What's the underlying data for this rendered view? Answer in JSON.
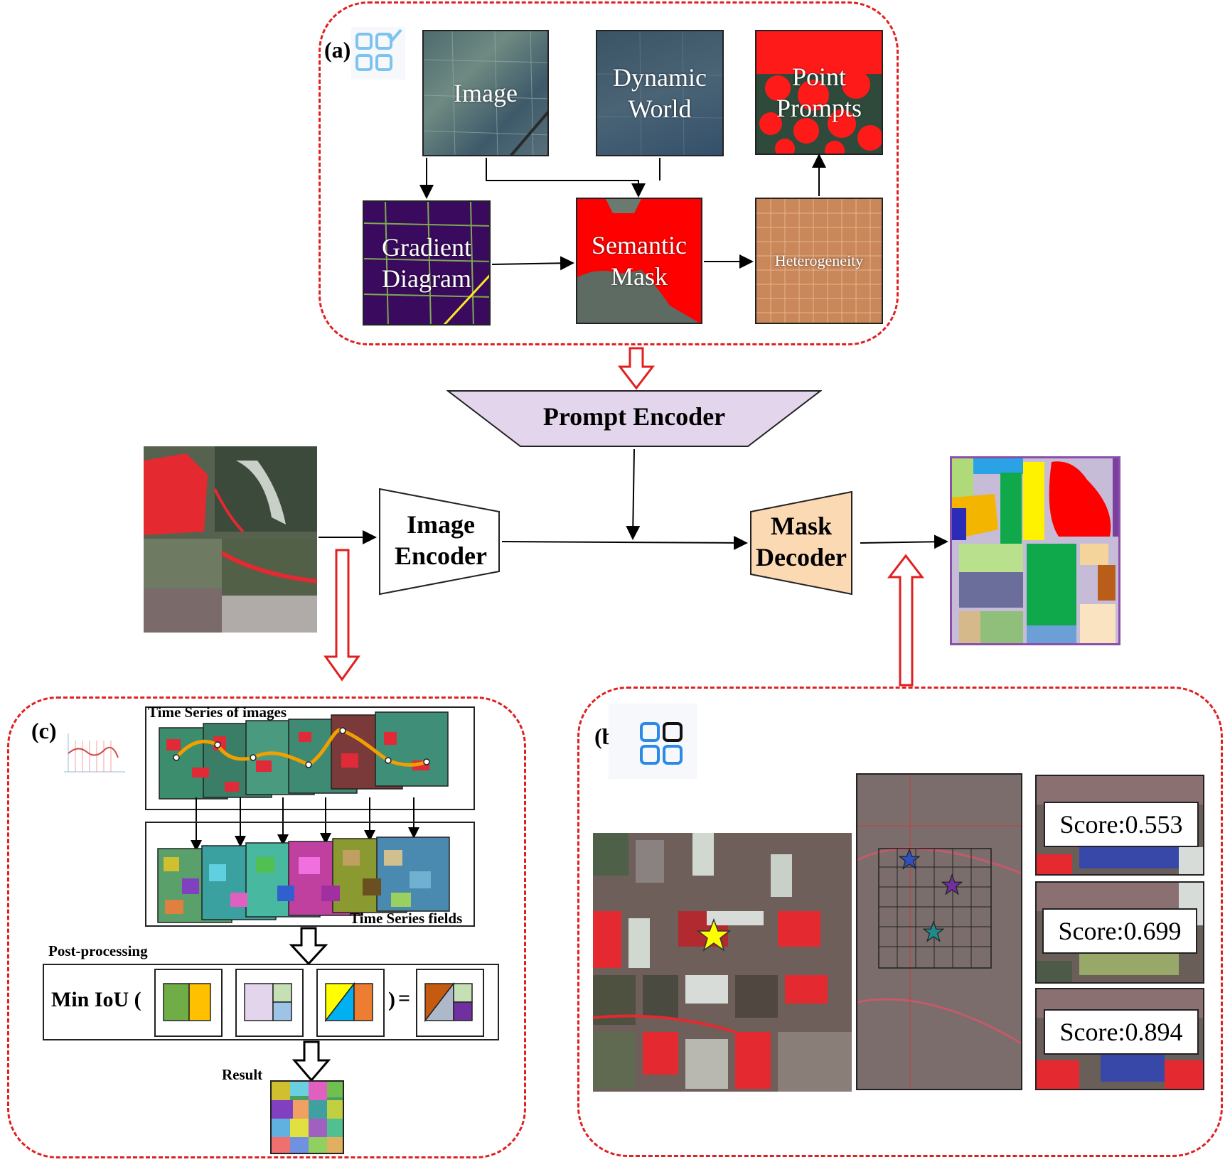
{
  "panel_a": {
    "label": "(a)",
    "icon": "checklist-grid-icon",
    "tiles": {
      "image": "Image",
      "dynamic_world_line1": "Dynamic",
      "dynamic_world_line2": "World",
      "point_prompts_line1": "Point",
      "point_prompts_line2": "Prompts",
      "gradient_line1": "Gradient",
      "gradient_line2": "Diagram",
      "semantic_line1": "Semantic",
      "semantic_line2": "Mask",
      "heterogeneity": "Heterogeneity"
    }
  },
  "center": {
    "prompt_encoder": "Prompt Encoder",
    "image_encoder_line1": "Image",
    "image_encoder_line2": "Encoder",
    "mask_decoder_line1": "Mask",
    "mask_decoder_line2": "Decoder"
  },
  "panel_b": {
    "label": "(b)",
    "icon": "grid-selection-icon",
    "scores": [
      "Score:0.553",
      "Score:0.699",
      "Score:0.894"
    ]
  },
  "panel_c": {
    "label": "(c)",
    "icon": "line-chart-icon",
    "time_series_images": "Time Series of images",
    "time_series_fields": "Time Series fields",
    "post_processing": "Post-processing",
    "min_iou": "Min IoU (",
    "close_paren": ")",
    "equals": "=",
    "result": "Result"
  },
  "colors": {
    "accent_red": "#e02020",
    "prompt_encoder_fill": "#e3d6ec",
    "mask_decoder_fill": "#fbd9b3",
    "semantic_red": "#ff0000",
    "gradient_purple": "#3a0a5e",
    "heterogeneity_orange": "#c9875a"
  }
}
